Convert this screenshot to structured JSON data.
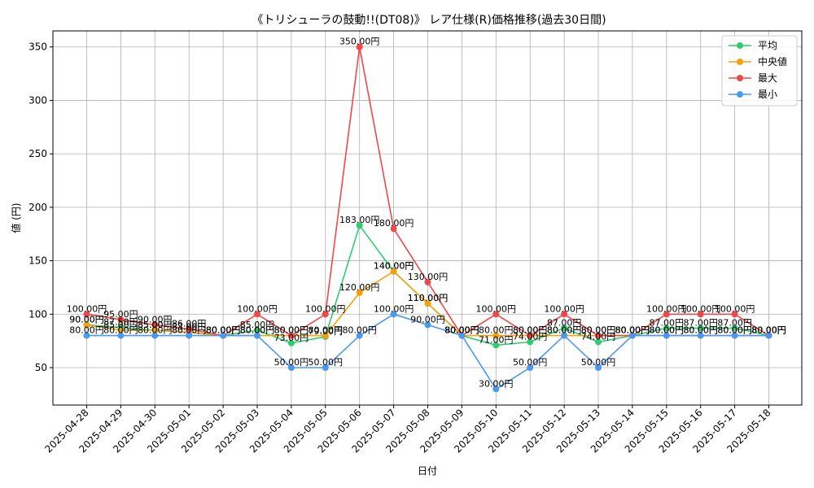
{
  "chart_data": {
    "type": "line",
    "title": "《トリシューラの鼓動!!(DT08)》 レア仕様(R)価格推移(過去30日間)",
    "xlabel": "日付",
    "ylabel": "値 (円)",
    "ylim": [
      15,
      365
    ],
    "yticks": [
      50,
      100,
      150,
      200,
      250,
      300,
      350
    ],
    "grid": true,
    "legend_position": "top-right",
    "value_suffix": "円",
    "x": [
      "2025-04-28",
      "2025-04-29",
      "2025-04-30",
      "2025-05-01",
      "2025-05-02",
      "2025-05-03",
      "2025-05-04",
      "2025-05-05",
      "2025-05-06",
      "2025-05-07",
      "2025-05-08",
      "2025-05-09",
      "2025-05-10",
      "2025-05-11",
      "2025-05-12",
      "2025-05-13",
      "2025-05-14",
      "2025-05-15",
      "2025-05-16",
      "2025-05-17",
      "2025-05-18"
    ],
    "series": [
      {
        "name": "平均",
        "color": "#2ecc71",
        "values": [
          90.0,
          87.5,
          85.0,
          83.0,
          80.0,
          85.0,
          73.0,
          79.0,
          183.0,
          140.0,
          110.0,
          80.0,
          71.0,
          74.0,
          87.0,
          74.0,
          80.0,
          87.0,
          87.0,
          87.0,
          80.0
        ]
      },
      {
        "name": "中央値",
        "color": "#f5a10a",
        "values": [
          90.0,
          85.0,
          85.0,
          83.0,
          80.0,
          80.0,
          80.0,
          80.0,
          120.0,
          140.0,
          110.0,
          80.0,
          80.0,
          80.0,
          80.0,
          80.0,
          80.0,
          80.0,
          80.0,
          80.0,
          80.0
        ]
      },
      {
        "name": "最大",
        "color": "#f04848",
        "values": [
          100.0,
          95.0,
          90.0,
          86.0,
          80.0,
          100.0,
          80.0,
          100.0,
          350.0,
          180.0,
          130.0,
          80.0,
          100.0,
          80.0,
          100.0,
          80.0,
          80.0,
          100.0,
          100.0,
          100.0,
          80.0
        ]
      },
      {
        "name": "最小",
        "color": "#4a98f0",
        "values": [
          80.0,
          80.0,
          80.0,
          80.0,
          80.0,
          80.0,
          50.0,
          50.0,
          80.0,
          100.0,
          90.0,
          80.0,
          30.0,
          50.0,
          80.0,
          50.0,
          80.0,
          80.0,
          80.0,
          80.0,
          80.0
        ]
      }
    ]
  }
}
